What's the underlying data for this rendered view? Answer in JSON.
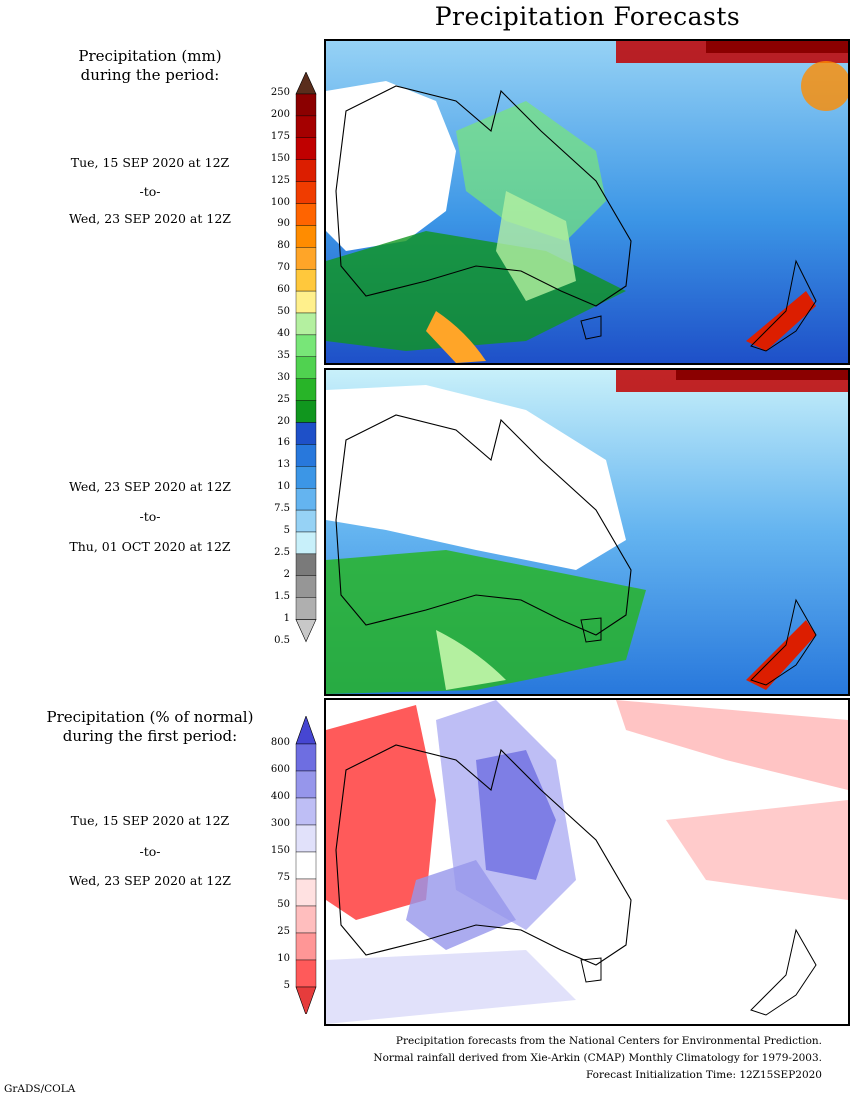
{
  "page": {
    "title": "Precipitation Forecasts",
    "credit": "GrADS/COLA"
  },
  "section_mm": {
    "heading_line1": "Precipitation (mm)",
    "heading_line2": "during the period:",
    "period1": {
      "start": "Tue, 15 SEP 2020 at 12Z",
      "sep": "-to-",
      "end": "Wed, 23 SEP 2020 at 12Z"
    },
    "period2": {
      "start": "Wed, 23 SEP 2020 at 12Z",
      "sep": "-to-",
      "end": "Thu, 01 OCT 2020 at 12Z"
    },
    "colorbar": {
      "labels": [
        "250",
        "200",
        "175",
        "150",
        "125",
        "100",
        "90",
        "80",
        "70",
        "60",
        "50",
        "40",
        "35",
        "30",
        "25",
        "20",
        "16",
        "13",
        "10",
        "7.5",
        "5",
        "2.5",
        "2",
        "1.5",
        "1",
        "0.5"
      ],
      "colors": [
        "#5a2d1c",
        "#8b0000",
        "#a50000",
        "#c00000",
        "#dc1e00",
        "#f03c00",
        "#ff6400",
        "#ff8c00",
        "#ffa528",
        "#ffc83c",
        "#fff08c",
        "#b4f0a0",
        "#78e678",
        "#50d250",
        "#28b428",
        "#10961e",
        "#1e50c8",
        "#2878dc",
        "#3c96e6",
        "#64b4f0",
        "#96d2f5",
        "#c8f0fa",
        "#7a7a7a",
        "#969696",
        "#afafaf",
        "#c8c8c8"
      ]
    }
  },
  "section_pct": {
    "heading_line1": "Precipitation (% of normal)",
    "heading_line2": "during the first period:",
    "period": {
      "start": "Tue, 15 SEP 2020 at 12Z",
      "sep": "-to-",
      "end": "Wed, 23 SEP 2020 at 12Z"
    },
    "colorbar": {
      "labels": [
        "800",
        "600",
        "400",
        "300",
        "150",
        "75",
        "50",
        "25",
        "10",
        "5"
      ],
      "colors": [
        "#4646d2",
        "#6e6ee1",
        "#9696eb",
        "#bebef5",
        "#e1e1fa",
        "#ffffff",
        "#ffe1e1",
        "#ffbebe",
        "#ff9696",
        "#ff5a5a",
        "#e63c3c"
      ]
    }
  },
  "footer": {
    "line1": "Precipitation forecasts from the National Centers for Environmental Prediction.",
    "line2": "Normal rainfall derived from Xie-Arkin (CMAP) Monthly Climatology for 1979-2003.",
    "line3": "Forecast Initialization Time: 12Z15SEP2020"
  }
}
